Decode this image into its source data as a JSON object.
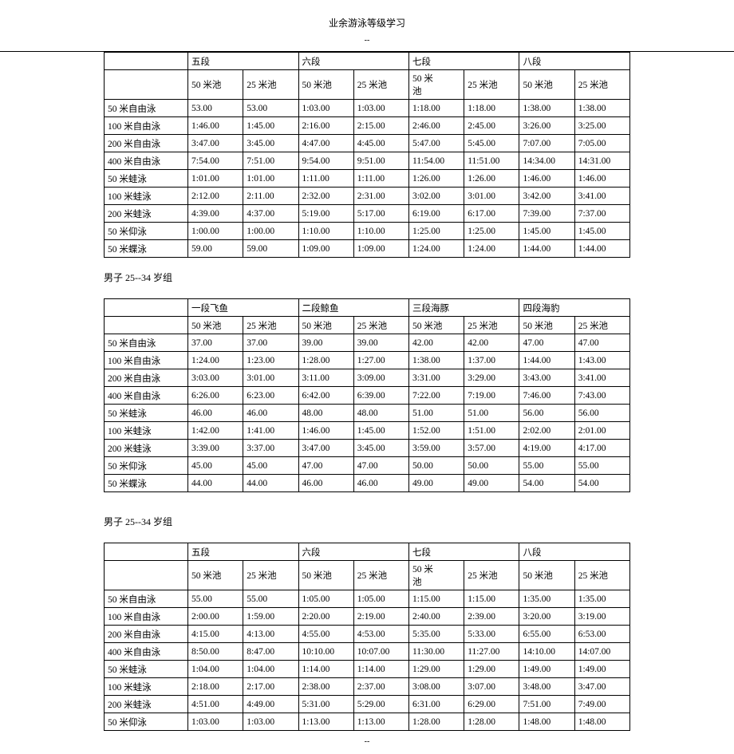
{
  "title": "业余游泳等级学习",
  "section_label_2": "男子 25--34  岁组",
  "section_label_3": "男子 25--34 岁组",
  "events": [
    "50 米自由泳",
    "100 米自由泳",
    "200 米自由泳",
    "400 米自由泳",
    "50 米蛙泳",
    "100 米蛙泳",
    "200 米蛙泳",
    "50 米仰泳",
    "50 米蝶泳"
  ],
  "events_t3": [
    "50 米自由泳",
    "100 米自由泳",
    "200 米自由泳",
    "400 米自由泳",
    "50 米蛙泳",
    "100 米蛙泳",
    "200 米蛙泳",
    "50 米仰泳"
  ],
  "pool_labels": [
    "50 米池",
    "25 米池"
  ],
  "pool_50m_wrap": "50 米",
  "pool_50m_wrap2": "池",
  "table1": {
    "group_headers": [
      "五段",
      "六段",
      "七段",
      "八段"
    ],
    "rows": [
      [
        "53.00",
        "53.00",
        "1:03.00",
        "1:03.00",
        "1:18.00",
        "1:18.00",
        "1:38.00",
        "1:38.00"
      ],
      [
        "1:46.00",
        "1:45.00",
        "2:16.00",
        "2:15.00",
        "2:46.00",
        "2:45.00",
        "3:26.00",
        "3:25.00"
      ],
      [
        "3:47.00",
        "3:45.00",
        "4:47.00",
        "4:45.00",
        "5:47.00",
        "5:45.00",
        "7:07.00",
        "7:05.00"
      ],
      [
        "7:54.00",
        "7:51.00",
        "9:54.00",
        "9:51.00",
        "11:54.00",
        "11:51.00",
        "14:34.00",
        "14:31.00"
      ],
      [
        "1:01.00",
        "1:01.00",
        "1:11.00",
        "1:11.00",
        "1:26.00",
        "1:26.00",
        "1:46.00",
        "1:46.00"
      ],
      [
        "2:12.00",
        "2:11.00",
        "2:32.00",
        "2:31.00",
        "3:02.00",
        "3:01.00",
        "3:42.00",
        "3:41.00"
      ],
      [
        "4:39.00",
        "4:37.00",
        "5:19.00",
        "5:17.00",
        "6:19.00",
        "6:17.00",
        "7:39.00",
        "7:37.00"
      ],
      [
        "1:00.00",
        "1:00.00",
        "1:10.00",
        "1:10.00",
        "1:25.00",
        "1:25.00",
        "1:45.00",
        "1:45.00"
      ],
      [
        "59.00",
        "59.00",
        "1:09.00",
        "1:09.00",
        "1:24.00",
        "1:24.00",
        "1:44.00",
        "1:44.00"
      ]
    ]
  },
  "table2": {
    "group_headers": [
      "一段飞鱼",
      "二段鲸鱼",
      "三段海豚",
      "四段海豹"
    ],
    "rows": [
      [
        "37.00",
        "37.00",
        "39.00",
        "39.00",
        "42.00",
        "42.00",
        "47.00",
        "47.00"
      ],
      [
        "1:24.00",
        "1:23.00",
        "1:28.00",
        "1:27.00",
        "1:38.00",
        "1:37.00",
        "1:44.00",
        "1:43.00"
      ],
      [
        "3:03.00",
        "3:01.00",
        "3:11.00",
        "3:09.00",
        "3:31.00",
        "3:29.00",
        "3:43.00",
        "3:41.00"
      ],
      [
        "6:26.00",
        "6:23.00",
        "6:42.00",
        "6:39.00",
        "7:22.00",
        "7:19.00",
        "7:46.00",
        "7:43.00"
      ],
      [
        "46.00",
        "46.00",
        "48.00",
        "48.00",
        "51.00",
        "51.00",
        "56.00",
        "56.00"
      ],
      [
        "1:42.00",
        "1:41.00",
        "1:46.00",
        "1:45.00",
        "1:52.00",
        "1:51.00",
        "2:02.00",
        "2:01.00"
      ],
      [
        "3:39.00",
        "3:37.00",
        "3:47.00",
        "3:45.00",
        "3:59.00",
        "3:57.00",
        "4:19.00",
        "4:17.00"
      ],
      [
        "45.00",
        "45.00",
        "47.00",
        "47.00",
        "50.00",
        "50.00",
        "55.00",
        "55.00"
      ],
      [
        "44.00",
        "44.00",
        "46.00",
        "46.00",
        "49.00",
        "49.00",
        "54.00",
        "54.00"
      ]
    ]
  },
  "table3": {
    "group_headers": [
      "五段",
      "六段",
      "七段",
      "八段"
    ],
    "rows": [
      [
        "55.00",
        "55.00",
        "1:05.00",
        "1:05.00",
        "1:15.00",
        "1:15.00",
        "1:35.00",
        "1:35.00"
      ],
      [
        "2:00.00",
        "1:59.00",
        "2:20.00",
        "2:19.00",
        "2:40.00",
        "2:39.00",
        "3:20.00",
        "3:19.00"
      ],
      [
        "4:15.00",
        "4:13.00",
        "4:55.00",
        "4:53.00",
        "5:35.00",
        "5:33.00",
        "6:55.00",
        "6:53.00"
      ],
      [
        "8:50.00",
        "8:47.00",
        "10:10.00",
        "10:07.00",
        "11:30.00",
        "11:27.00",
        "14:10.00",
        "14:07.00"
      ],
      [
        "1:04.00",
        "1:04.00",
        "1:14.00",
        "1:14.00",
        "1:29.00",
        "1:29.00",
        "1:49.00",
        "1:49.00"
      ],
      [
        "2:18.00",
        "2:17.00",
        "2:38.00",
        "2:37.00",
        "3:08.00",
        "3:07.00",
        "3:48.00",
        "3:47.00"
      ],
      [
        "4:51.00",
        "4:49.00",
        "5:31.00",
        "5:29.00",
        "6:31.00",
        "6:29.00",
        "7:51.00",
        "7:49.00"
      ],
      [
        "1:03.00",
        "1:03.00",
        "1:13.00",
        "1:13.00",
        "1:28.00",
        "1:28.00",
        "1:48.00",
        "1:48.00"
      ]
    ]
  }
}
